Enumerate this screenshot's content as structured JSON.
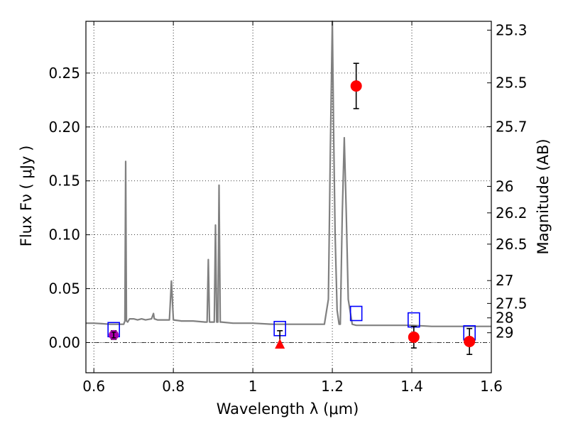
{
  "chart_data": {
    "type": "scatter",
    "title": "",
    "xlabel": "Wavelength  λ (μm)",
    "ylabel": "Flux  Fν ( μJy )",
    "ylabel_right": "Magnitude (AB)",
    "xlim": [
      0.58,
      1.6
    ],
    "ylim": [
      -0.028,
      0.298
    ],
    "grid": true,
    "legend": "none",
    "x_ticks": [
      0.6,
      0.8,
      1.0,
      1.2,
      1.4,
      1.6
    ],
    "x_tick_labels": [
      "0.6",
      "0.8",
      "1",
      "1.2",
      "1.4",
      "1.6"
    ],
    "y_ticks": [
      0.0,
      0.05,
      0.1,
      0.15,
      0.2,
      0.25
    ],
    "y_tick_labels": [
      "0.00",
      "0.05",
      "0.10",
      "0.15",
      "0.20",
      "0.25"
    ],
    "right_ticks": [
      {
        "flux": 0.2898,
        "label": "25.3"
      },
      {
        "flux": 0.2409,
        "label": "25.5"
      },
      {
        "flux": 0.2003,
        "label": "25.7"
      },
      {
        "flux": 0.1449,
        "label": "26"
      },
      {
        "flux": 0.1203,
        "label": "26.2"
      },
      {
        "flux": 0.0913,
        "label": "26.5"
      },
      {
        "flux": 0.0575,
        "label": "27"
      },
      {
        "flux": 0.0363,
        "label": "27.5"
      },
      {
        "flux": 0.0229,
        "label": "28"
      },
      {
        "flux": 0.0091,
        "label": "29"
      }
    ],
    "colors": {
      "model": "#808080",
      "photometry": "#ff0000",
      "model_photometry": "#0000ff",
      "special_point": "#aa00aa",
      "errorbar": "#000000"
    },
    "series": [
      {
        "kind": "line",
        "x": [
          0.58,
          0.6,
          0.62,
          0.64,
          0.66,
          0.675,
          0.678,
          0.68,
          0.682,
          0.685,
          0.69,
          0.7,
          0.71,
          0.72,
          0.73,
          0.745,
          0.75,
          0.752,
          0.76,
          0.78,
          0.79,
          0.795,
          0.8,
          0.82,
          0.85,
          0.88,
          0.885,
          0.888,
          0.891,
          0.895,
          0.9,
          0.903,
          0.906,
          0.909,
          0.912,
          0.915,
          0.918,
          0.921,
          0.95,
          1.0,
          1.05,
          1.1,
          1.15,
          1.18,
          1.19,
          1.195,
          1.2,
          1.203,
          1.207,
          1.212,
          1.217,
          1.22,
          1.225,
          1.23,
          1.235,
          1.24,
          1.25,
          1.26,
          1.3,
          1.35,
          1.4,
          1.45,
          1.5,
          1.55,
          1.58,
          1.6
        ],
        "y": [
          0.018,
          0.018,
          0.0175,
          0.017,
          0.017,
          0.017,
          0.02,
          0.168,
          0.02,
          0.019,
          0.022,
          0.022,
          0.021,
          0.022,
          0.021,
          0.022,
          0.027,
          0.022,
          0.021,
          0.021,
          0.021,
          0.057,
          0.021,
          0.02,
          0.02,
          0.019,
          0.019,
          0.077,
          0.019,
          0.019,
          0.019,
          0.019,
          0.109,
          0.019,
          0.019,
          0.146,
          0.019,
          0.019,
          0.018,
          0.018,
          0.017,
          0.017,
          0.017,
          0.017,
          0.04,
          0.18,
          0.298,
          0.2,
          0.1,
          0.03,
          0.017,
          0.017,
          0.12,
          0.19,
          0.12,
          0.04,
          0.017,
          0.016,
          0.016,
          0.016,
          0.016,
          0.015,
          0.015,
          0.015,
          0.015,
          0.015
        ]
      },
      {
        "kind": "measured",
        "x": [
          0.65,
          1.26,
          1.405,
          1.545
        ],
        "y": [
          0.007,
          0.238,
          0.005,
          0.001
        ],
        "yerr": [
          0.004,
          0.021,
          0.01,
          0.012
        ]
      },
      {
        "kind": "upper-limit",
        "x": [
          1.068
        ],
        "y": [
          -0.001
        ],
        "yerr_up": [
          0.012
        ]
      },
      {
        "kind": "model-photometry",
        "x": [
          0.65,
          1.068,
          1.26,
          1.405,
          1.545
        ],
        "y": [
          0.012,
          0.013,
          0.027,
          0.021,
          0.009
        ]
      }
    ]
  }
}
